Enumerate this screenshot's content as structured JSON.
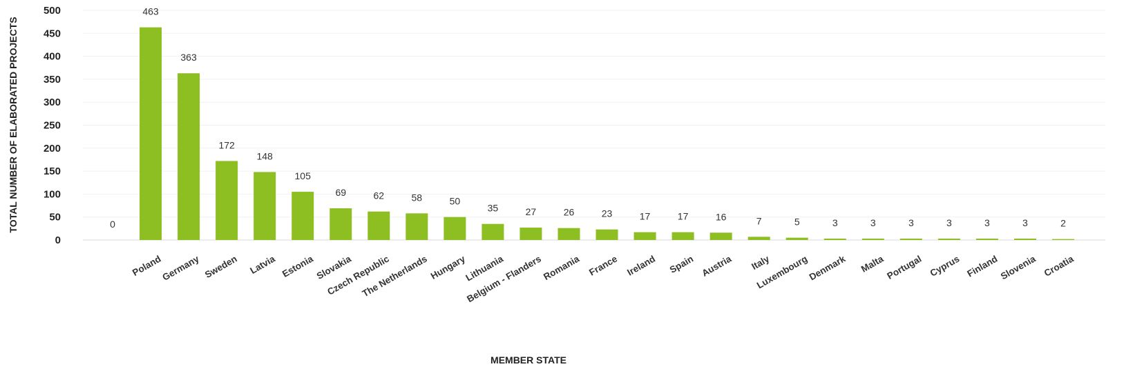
{
  "chart_data": {
    "type": "bar",
    "title": "",
    "xlabel": "MEMBER STATE",
    "ylabel": "TOTAL NUMBER OF ELABORATED PROJECTS",
    "ylim": [
      0,
      500
    ],
    "yticks": [
      0,
      50,
      100,
      150,
      200,
      250,
      300,
      350,
      400,
      450,
      500
    ],
    "grid": true,
    "legend": "none",
    "bar_color": "#8dbe22",
    "categories": [
      "",
      "Poland",
      "Germany",
      "Sweden",
      "Latvia",
      "Estonia",
      "Slovakia",
      "Czech Republic",
      "The Netherlands",
      "Hungary",
      "Lithuania",
      "Belgium - Flanders",
      "Romania",
      "France",
      "Ireland",
      "Spain",
      "Austria",
      "Italy",
      "Luxembourg",
      "Denmark",
      "Malta",
      "Portugal",
      "Cyprus",
      "Finland",
      "Slovenia",
      "Croatia"
    ],
    "values": [
      0,
      463,
      363,
      172,
      148,
      105,
      69,
      62,
      58,
      50,
      35,
      27,
      26,
      23,
      17,
      17,
      16,
      7,
      5,
      3,
      3,
      3,
      3,
      3,
      3,
      2
    ]
  }
}
